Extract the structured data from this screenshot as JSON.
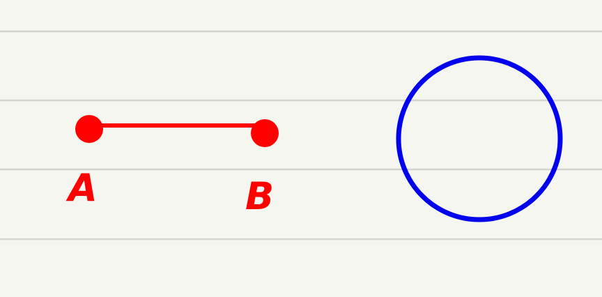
{
  "canvas": {
    "background": "#f6f6f1",
    "rule_color": "#d3d3cf"
  },
  "segment": {
    "color": "#ff0000",
    "point_a": {
      "label": "A"
    },
    "point_b": {
      "label": "B"
    }
  },
  "circle": {
    "color": "#0000ee"
  }
}
